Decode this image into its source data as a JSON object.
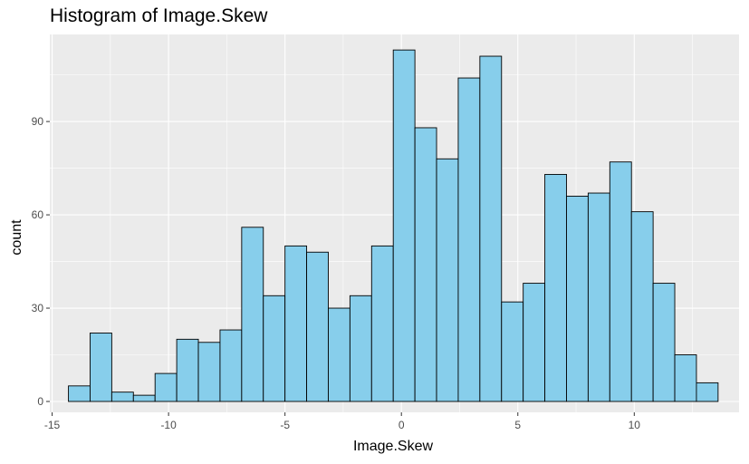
{
  "chart_data": {
    "type": "histogram",
    "title": "Histogram of Image.Skew",
    "xlabel": "Image.Skew",
    "ylabel": "count",
    "xlim": [
      -15.1,
      14.5
    ],
    "ylim": [
      -3.5,
      118
    ],
    "x_ticks": [
      -15,
      -10,
      -5,
      0,
      5,
      10
    ],
    "y_ticks": [
      0,
      30,
      60,
      90
    ],
    "bin_width": 0.93,
    "bins": [
      {
        "x_start": -14.3,
        "count": 5
      },
      {
        "x_start": -13.37,
        "count": 22
      },
      {
        "x_start": -12.44,
        "count": 3
      },
      {
        "x_start": -11.51,
        "count": 2
      },
      {
        "x_start": -10.58,
        "count": 9
      },
      {
        "x_start": -9.65,
        "count": 20
      },
      {
        "x_start": -8.72,
        "count": 19
      },
      {
        "x_start": -7.79,
        "count": 23
      },
      {
        "x_start": -6.86,
        "count": 56
      },
      {
        "x_start": -5.93,
        "count": 34
      },
      {
        "x_start": -5.0,
        "count": 50
      },
      {
        "x_start": -4.07,
        "count": 48
      },
      {
        "x_start": -3.14,
        "count": 30
      },
      {
        "x_start": -2.21,
        "count": 34
      },
      {
        "x_start": -1.28,
        "count": 50
      },
      {
        "x_start": -0.35,
        "count": 113
      },
      {
        "x_start": 0.58,
        "count": 88
      },
      {
        "x_start": 1.51,
        "count": 78
      },
      {
        "x_start": 2.44,
        "count": 104
      },
      {
        "x_start": 3.37,
        "count": 111
      },
      {
        "x_start": 4.3,
        "count": 32
      },
      {
        "x_start": 5.23,
        "count": 38
      },
      {
        "x_start": 6.16,
        "count": 73
      },
      {
        "x_start": 7.09,
        "count": 66
      },
      {
        "x_start": 8.02,
        "count": 67
      },
      {
        "x_start": 8.95,
        "count": 77
      },
      {
        "x_start": 9.88,
        "count": 61
      },
      {
        "x_start": 10.81,
        "count": 38
      },
      {
        "x_start": 11.74,
        "count": 15
      },
      {
        "x_start": 12.67,
        "count": 6
      }
    ],
    "fill_color": "#87CEEB",
    "outline_color": "#000000",
    "panel_background": "#EBEBEB",
    "grid_color": "#FFFFFF",
    "grid": true,
    "legend": "none"
  }
}
